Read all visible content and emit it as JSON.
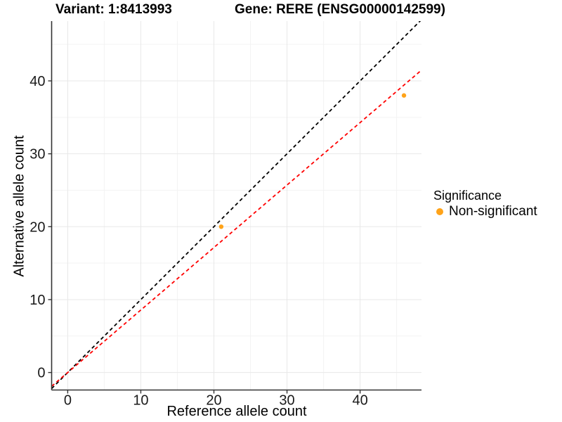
{
  "figure": {
    "title_variant": "Variant: 1:8413993",
    "title_gene": "Gene: RERE (ENSG00000142599)"
  },
  "chart_data": {
    "type": "scatter",
    "title_left": "Variant: 1:8413993",
    "title_right": "Gene: RERE (ENSG00000142599)",
    "xlabel": "Reference allele count",
    "ylabel": "Alternative allele count",
    "xlim": [
      -2.2,
      48.4
    ],
    "ylim": [
      -2.4,
      48.2
    ],
    "x_ticks": [
      0,
      10,
      20,
      30,
      40
    ],
    "y_ticks": [
      0,
      10,
      20,
      30,
      40
    ],
    "x_minor_ticks": [
      5,
      15,
      25,
      35,
      45
    ],
    "y_minor_ticks": [
      5,
      15,
      25,
      35,
      45
    ],
    "grid": true,
    "legend_position": "right",
    "series": [
      {
        "name": "Non-significant",
        "color": "#FFA319",
        "points": [
          [
            21,
            20
          ],
          [
            46,
            38
          ]
        ]
      }
    ],
    "lines": [
      {
        "name": "identity-line",
        "slope": 1,
        "intercept": 0,
        "color": "#000000",
        "dash": "5,4"
      },
      {
        "name": "fit-line",
        "slope": 0.857,
        "intercept": 0,
        "color": "#FF0000",
        "dash": "5,4"
      }
    ],
    "legend": {
      "title": "Significance",
      "items": [
        {
          "label": "Non-significant",
          "color": "#FFA319"
        }
      ]
    },
    "colors": {
      "axis_line": "#333333",
      "tick_text": "#1a1a1a",
      "grid_major": "#e8e8e8",
      "grid_minor": "#f3f3f3",
      "background": "#ffffff"
    }
  }
}
